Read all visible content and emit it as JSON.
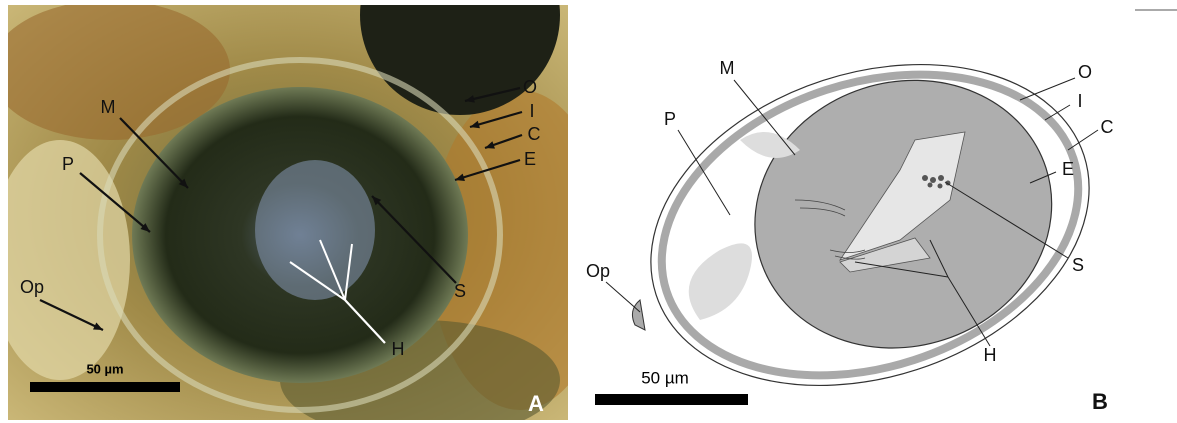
{
  "panels": [
    {
      "id": "A",
      "scale_bar": "50 µm",
      "labels": [
        "O",
        "I",
        "C",
        "E",
        "M",
        "P",
        "S",
        "H",
        "Op"
      ]
    },
    {
      "id": "B",
      "scale_bar": "50 µm",
      "labels": [
        "O",
        "I",
        "C",
        "E",
        "M",
        "P",
        "S",
        "H",
        "Op"
      ]
    }
  ]
}
